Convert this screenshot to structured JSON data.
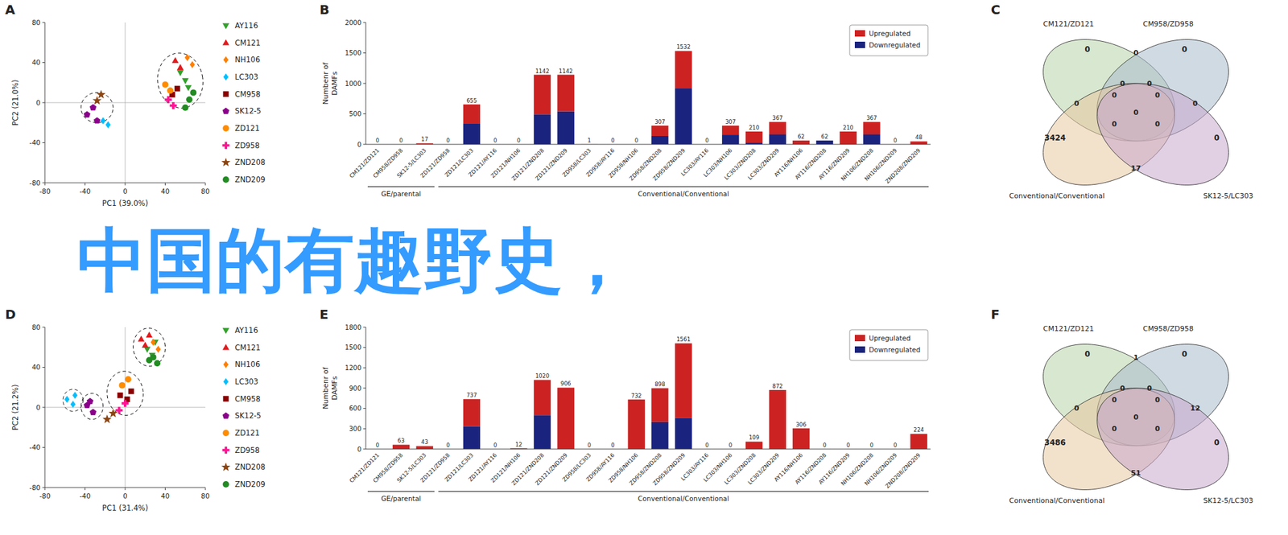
{
  "chart_data": [
    {
      "type": "scatter",
      "title": "A",
      "xlabel": "PC1 (39.0%)",
      "ylabel": "PC2 (21.0%)",
      "xlim": [
        -80,
        80
      ],
      "ylim": [
        -80,
        80
      ],
      "xticks": [
        -80,
        -40,
        0,
        40,
        80
      ],
      "yticks": [
        -80,
        -40,
        0,
        40,
        80
      ],
      "grid": false,
      "legend": "right",
      "series": [
        {
          "name": "AY116",
          "color": "#33a02c",
          "marker": "triangle-down",
          "x": [
            55,
            60,
            63
          ],
          "values": [
            30,
            22,
            15
          ]
        },
        {
          "name": "CM121",
          "color": "#e31a1c",
          "marker": "triangle-up",
          "x": [
            50,
            55
          ],
          "values": [
            42,
            35
          ]
        },
        {
          "name": "NH106",
          "color": "#ff7f00",
          "marker": "diamond",
          "x": [
            62,
            67
          ],
          "values": [
            45,
            38
          ]
        },
        {
          "name": "LC303",
          "color": "#00bfff",
          "marker": "diamond",
          "x": [
            -22,
            -17
          ],
          "values": [
            -18,
            -22
          ]
        },
        {
          "name": "CM958",
          "color": "#8b0000",
          "marker": "square",
          "x": [
            47,
            52
          ],
          "values": [
            8,
            14
          ]
        },
        {
          "name": "SK12-5",
          "color": "#8b008b",
          "marker": "pentagon",
          "x": [
            -32,
            -38,
            -28
          ],
          "values": [
            -5,
            -12,
            -18
          ]
        },
        {
          "name": "ZD121",
          "color": "#ff8c00",
          "marker": "circle",
          "x": [
            40,
            45
          ],
          "values": [
            18,
            12
          ]
        },
        {
          "name": "ZD958",
          "color": "#ff1493",
          "marker": "plus",
          "x": [
            43,
            48
          ],
          "values": [
            3,
            -3
          ]
        },
        {
          "name": "ZND208",
          "color": "#8b4513",
          "marker": "star",
          "x": [
            -28,
            -24
          ],
          "values": [
            2,
            8
          ]
        },
        {
          "name": "ZND209",
          "color": "#228b22",
          "marker": "circle",
          "x": [
            60,
            64,
            68
          ],
          "values": [
            -5,
            3,
            10
          ]
        }
      ],
      "ellipses": [
        {
          "cx": -28,
          "cy": -5,
          "width": 32,
          "height": 30,
          "angle": 0
        },
        {
          "cx": 55,
          "cy": 22,
          "width": 45,
          "height": 55,
          "angle": 8
        }
      ]
    },
    {
      "type": "bar",
      "title": "B",
      "ylabel": "Numbenr of\nDAMFs",
      "stacked": true,
      "categories": [
        "CM121/ZD121",
        "CM958/ZD958",
        "SK12-5/LC303",
        "ZD121/ZD958",
        "ZD121/LC303",
        "ZD121/AY116",
        "ZD121/NH106",
        "ZD121/ZND208",
        "ZD121/ZND209",
        "ZD958/LC303",
        "ZD958/AY116",
        "ZD958/NH106",
        "ZD958/ZND208",
        "ZD958/ZND209",
        "LC303/AY116",
        "LC303/NH106",
        "LC303/ZND208",
        "LC303/ZND209",
        "AY116/NH106",
        "AY116/ZND208",
        "AY116/ZND209",
        "NH106/ZND208",
        "NH106/ZND209",
        "ZND208/ZND209"
      ],
      "series": [
        {
          "name": "Downregulated",
          "color": "#1a237e",
          "values": [
            0,
            0,
            0,
            0,
            345,
            0,
            0,
            492,
            542,
            0,
            0,
            0,
            137,
            916,
            0,
            157,
            30,
            167,
            0,
            62,
            0,
            167,
            0,
            0
          ]
        },
        {
          "name": "Upregulated",
          "color": "#cc2222",
          "values": [
            0,
            0,
            17,
            0,
            310,
            0,
            0,
            650,
            600,
            1,
            0,
            0,
            170,
            616,
            0,
            150,
            180,
            200,
            62,
            0,
            210,
            200,
            0,
            48
          ]
        }
      ],
      "totals": [
        0,
        0,
        17,
        0,
        655,
        0,
        0,
        1142,
        1142,
        1,
        0,
        0,
        307,
        1532,
        0,
        307,
        210,
        367,
        62,
        62,
        210,
        367,
        0,
        48
      ],
      "data_labels": true,
      "ylim": [
        0,
        2000
      ],
      "yticks": [
        0,
        500,
        1000,
        1500,
        2000
      ],
      "grid": false,
      "legend": "upper-right",
      "groups": [
        {
          "label": "GE/parental",
          "from": "CM121/ZD121",
          "to": "SK12-5/LC303"
        },
        {
          "label": "Conventional/Conventional",
          "from": "ZD121/ZD958",
          "to": "ZND208/ZND209"
        }
      ]
    },
    {
      "type": "venn",
      "title": "C",
      "series": [
        {
          "name": "CM121/ZD121",
          "color": "#b8d4a8"
        },
        {
          "name": "CM958/ZD958",
          "color": "#aabccc"
        },
        {
          "name": "Conventional/Conventional",
          "color": "#e8c8a0"
        },
        {
          "name": "SK12-5/LC303",
          "color": "#c8a8cc"
        }
      ],
      "regions": [
        {
          "sets": [
            "CM121/ZD121"
          ],
          "value": 0
        },
        {
          "sets": [
            "CM958/ZD958"
          ],
          "value": 0
        },
        {
          "sets": [
            "Conventional/Conventional"
          ],
          "value": 3424
        },
        {
          "sets": [
            "SK12-5/LC303"
          ],
          "value": 0
        },
        {
          "sets": [
            "CM121/ZD121",
            "CM958/ZD958"
          ],
          "value": 0
        },
        {
          "sets": [
            "CM121/ZD121",
            "Conventional/Conventional"
          ],
          "value": 0
        },
        {
          "sets": [
            "CM958/ZD958",
            "SK12-5/LC303"
          ],
          "value": 0
        },
        {
          "sets": [
            "Conventional/Conventional",
            "SK12-5/LC303"
          ],
          "value": 17
        },
        {
          "sets": [
            "CM121/ZD121",
            "SK12-5/LC303"
          ],
          "value": 0
        },
        {
          "sets": [
            "CM958/ZD958",
            "Conventional/Conventional"
          ],
          "value": 0
        },
        {
          "sets": [
            "CM121/ZD121",
            "CM958/ZD958",
            "Conventional/Conventional",
            "SK12-5/LC303"
          ],
          "value": 0
        },
        {
          "sets": [
            "CM121/ZD121",
            "CM958/ZD958",
            "Conventional/Conventional"
          ],
          "value": 0
        },
        {
          "sets": [
            "CM121/ZD121",
            "CM958/ZD958",
            "SK12-5/LC303"
          ],
          "value": 0
        },
        {
          "sets": [
            "CM121/ZD121",
            "Conventional/Conventional",
            "SK12-5/LC303"
          ],
          "value": 0
        },
        {
          "sets": [
            "CM958/ZD958",
            "Conventional/Conventional",
            "SK12-5/LC303"
          ],
          "value": 0
        }
      ]
    },
    {
      "type": "scatter",
      "title": "D",
      "xlabel": "PC1 (31.4%)",
      "ylabel": "PC2 (21.2%)",
      "xlim": [
        -80,
        80
      ],
      "ylim": [
        -80,
        80
      ],
      "xticks": [
        -80,
        -40,
        0,
        40,
        80
      ],
      "yticks": [
        -80,
        -40,
        0,
        40,
        80
      ],
      "grid": false,
      "legend": "right",
      "series": [
        {
          "name": "AY116",
          "color": "#33a02c",
          "marker": "triangle-down",
          "x": [
            22,
            27,
            30
          ],
          "values": [
            58,
            52,
            65
          ]
        },
        {
          "name": "CM121",
          "color": "#e31a1c",
          "marker": "triangle-up",
          "x": [
            16,
            20,
            24
          ],
          "values": [
            68,
            62,
            72
          ]
        },
        {
          "name": "NH106",
          "color": "#ff7f00",
          "marker": "diamond",
          "x": [
            28,
            33
          ],
          "values": [
            65,
            58
          ]
        },
        {
          "name": "LC303",
          "color": "#00bfff",
          "marker": "diamond",
          "x": [
            -58,
            -52,
            -50
          ],
          "values": [
            8,
            3,
            12
          ]
        },
        {
          "name": "CM958",
          "color": "#8b0000",
          "marker": "square",
          "x": [
            -5,
            2,
            6
          ],
          "values": [
            12,
            8,
            16
          ]
        },
        {
          "name": "SK12-5",
          "color": "#8b008b",
          "marker": "pentagon",
          "x": [
            -38,
            -32,
            -35
          ],
          "values": [
            2,
            -5,
            6
          ]
        },
        {
          "name": "ZD121",
          "color": "#ff8c00",
          "marker": "circle",
          "x": [
            -3,
            3
          ],
          "values": [
            22,
            28
          ]
        },
        {
          "name": "ZD958",
          "color": "#ff1493",
          "marker": "plus",
          "x": [
            -6,
            0
          ],
          "values": [
            -3,
            4
          ]
        },
        {
          "name": "ZND208",
          "color": "#8b4513",
          "marker": "star",
          "x": [
            -18,
            -12
          ],
          "values": [
            -12,
            -6
          ]
        },
        {
          "name": "ZND209",
          "color": "#228b22",
          "marker": "circle",
          "x": [
            24,
            28,
            32
          ],
          "values": [
            47,
            50,
            44
          ]
        }
      ],
      "ellipses": [
        {
          "cx": -52,
          "cy": 7,
          "width": 20,
          "height": 22,
          "angle": 0
        },
        {
          "cx": -33,
          "cy": 1,
          "width": 22,
          "height": 26,
          "angle": 0
        },
        {
          "cx": 24,
          "cy": 60,
          "width": 32,
          "height": 38,
          "angle": 5
        },
        {
          "cx": 0,
          "cy": 14,
          "width": 36,
          "height": 44,
          "angle": 5
        }
      ]
    },
    {
      "type": "bar",
      "title": "E",
      "ylabel": "Numbenr of\nDAMFs",
      "stacked": true,
      "categories": [
        "CM121/ZD121",
        "CM958/ZD958",
        "SK12-5/LC303",
        "ZD121/ZD958",
        "ZD121/LC303",
        "ZD121/AY116",
        "ZD121/NH106",
        "ZD121/ZND208",
        "ZD121/ZND209",
        "ZD958/LC303",
        "ZD958/AY116",
        "ZD958/NH106",
        "ZD958/ZND208",
        "ZD958/ZND209",
        "LC303/AY116",
        "LC303/NH106",
        "LC303/ZND208",
        "LC303/ZND209",
        "AY116/NH106",
        "AY116/ZND208",
        "AY116/ZND209",
        "NH106/ZND208",
        "NH106/ZND209",
        "ZND208/ZND209"
      ],
      "series": [
        {
          "name": "Downregulated",
          "color": "#1a237e",
          "values": [
            0,
            0,
            0,
            0,
            337,
            0,
            0,
            500,
            0,
            0,
            0,
            0,
            400,
            461,
            0,
            0,
            0,
            0,
            0,
            0,
            0,
            0,
            0,
            0
          ]
        },
        {
          "name": "Upregulated",
          "color": "#cc2222",
          "values": [
            0,
            63,
            43,
            0,
            400,
            0,
            12,
            520,
            906,
            0,
            0,
            732,
            498,
            1100,
            0,
            0,
            109,
            872,
            306,
            0,
            0,
            0,
            0,
            224
          ]
        }
      ],
      "totals": [
        0,
        63,
        43,
        0,
        737,
        0,
        12,
        1020,
        906,
        0,
        0,
        732,
        898,
        1561,
        0,
        0,
        109,
        872,
        306,
        0,
        0,
        0,
        0,
        224
      ],
      "data_labels": true,
      "ylim": [
        0,
        1800
      ],
      "yticks": [
        0,
        300,
        600,
        900,
        1200,
        1500,
        1800
      ],
      "grid": false,
      "legend": "upper-right",
      "groups": [
        {
          "label": "GE/parental",
          "from": "CM121/ZD121",
          "to": "SK12-5/LC303"
        },
        {
          "label": "Conventional/Conventional",
          "from": "ZD121/ZD958",
          "to": "ZND208/ZND209"
        }
      ]
    },
    {
      "type": "venn",
      "title": "F",
      "series": [
        {
          "name": "CM121/ZD121",
          "color": "#b8d4a8"
        },
        {
          "name": "CM958/ZD958",
          "color": "#aabccc"
        },
        {
          "name": "Conventional/Conventional",
          "color": "#e8c8a0"
        },
        {
          "name": "SK12-5/LC303",
          "color": "#c8a8cc"
        }
      ],
      "regions": [
        {
          "sets": [
            "CM121/ZD121"
          ],
          "value": 0
        },
        {
          "sets": [
            "CM958/ZD958"
          ],
          "value": 0
        },
        {
          "sets": [
            "Conventional/Conventional"
          ],
          "value": 3486
        },
        {
          "sets": [
            "SK12-5/LC303"
          ],
          "value": 0
        },
        {
          "sets": [
            "CM121/ZD121",
            "CM958/ZD958"
          ],
          "value": 1
        },
        {
          "sets": [
            "CM121/ZD121",
            "Conventional/Conventional"
          ],
          "value": 0
        },
        {
          "sets": [
            "CM958/ZD958",
            "SK12-5/LC303"
          ],
          "value": 12
        },
        {
          "sets": [
            "Conventional/Conventional",
            "SK12-5/LC303"
          ],
          "value": 51
        },
        {
          "sets": [
            "CM121/ZD121",
            "SK12-5/LC303"
          ],
          "value": 0
        },
        {
          "sets": [
            "CM958/ZD958",
            "Conventional/Conventional"
          ],
          "value": 0
        },
        {
          "sets": [
            "CM121/ZD121",
            "CM958/ZD958",
            "Conventional/Conventional",
            "SK12-5/LC303"
          ],
          "value": 0
        },
        {
          "sets": [
            "CM121/ZD121",
            "CM958/ZD958",
            "Conventional/Conventional"
          ],
          "value": 0
        },
        {
          "sets": [
            "CM121/ZD121",
            "CM958/ZD958",
            "SK12-5/LC303"
          ],
          "value": 0
        },
        {
          "sets": [
            "CM121/ZD121",
            "Conventional/Conventional",
            "SK12-5/LC303"
          ],
          "value": 0
        },
        {
          "sets": [
            "CM958/ZD958",
            "Conventional/Conventional",
            "SK12-5/LC303"
          ],
          "value": 0
        }
      ]
    },
    {
      "type": "text",
      "annotations": [
        "中国的有趣野史，"
      ],
      "color": "#1e90ff"
    }
  ]
}
